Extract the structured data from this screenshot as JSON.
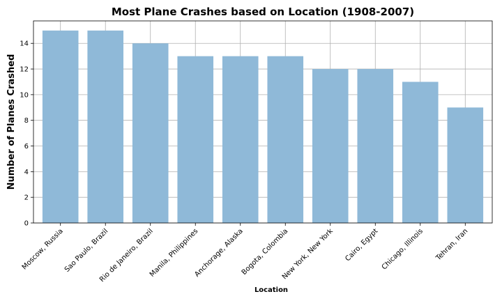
{
  "chart_data": {
    "type": "bar",
    "title": "Most Plane Crashes based on Location (1908-2007)",
    "xlabel": "Location",
    "ylabel": "Number of Planes Crashed",
    "categories": [
      "Moscow, Russia",
      "Sao Paulo, Brazil",
      "Rio de Janeiro, Brazil",
      "Manila, Philippines",
      "Anchorage, Alaska",
      "Bogota, Colombia",
      "New York, New York",
      "Cairo, Egypt",
      "Chicago, Illinois",
      "Tehran, Iran"
    ],
    "values": [
      15,
      15,
      14,
      13,
      13,
      13,
      12,
      12,
      11,
      9
    ],
    "ylim": [
      0,
      15.75
    ],
    "yticks": [
      0,
      2,
      4,
      6,
      8,
      10,
      12,
      14
    ],
    "grid": true,
    "bar_color": "#8fb9d8"
  }
}
